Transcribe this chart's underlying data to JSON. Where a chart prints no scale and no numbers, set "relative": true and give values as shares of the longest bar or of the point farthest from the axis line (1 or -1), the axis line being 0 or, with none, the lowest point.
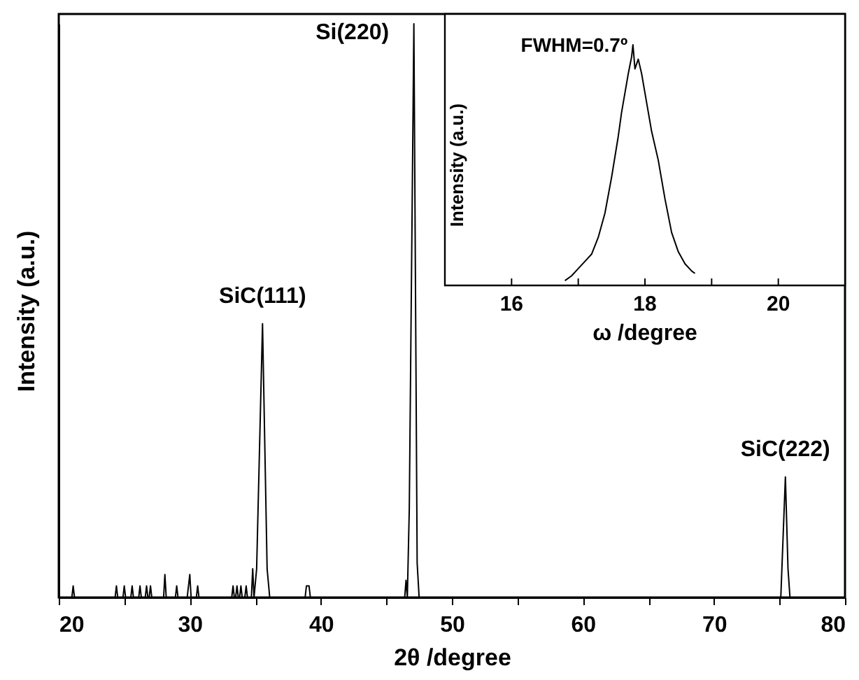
{
  "chart_data": [
    {
      "type": "line",
      "relative": true,
      "xlabel": "2θ /degree",
      "ylabel": "Intensity (a.u.)",
      "xlim": [
        20,
        80
      ],
      "xticks": [
        20,
        {
          "value": 25,
          "label": null
        },
        30,
        {
          "value": 35,
          "label": null
        },
        40,
        {
          "value": 45,
          "label": null
        },
        50,
        {
          "value": 55,
          "label": null
        },
        60,
        {
          "value": 65,
          "label": null
        },
        70,
        {
          "value": 75,
          "label": null
        },
        80
      ],
      "grid": false,
      "tick_labels": "x",
      "annotations": [
        {
          "text": "SiC(111)",
          "x": 35.55,
          "y": 0.477
        },
        {
          "text": "Si(220)",
          "x": 47.1,
          "y": 1
        },
        {
          "text": "SiC(222)",
          "x": 75.45,
          "y": 0.21
        }
      ],
      "series": [
        {
          "color": "#000000",
          "x": [
            20,
            21.0,
            21.1,
            21.2,
            24.3,
            24.4,
            24.5,
            24.9,
            25.0,
            25.1,
            25.5,
            25.6,
            25.7,
            26.1,
            26.2,
            26.3,
            26.6,
            26.7,
            26.8,
            26.9,
            27.0,
            27.1,
            28.0,
            28.1,
            28.2,
            28.9,
            29.0,
            29.1,
            29.8,
            29.9,
            30.0,
            30.1,
            30.2,
            30.5,
            30.6,
            30.7,
            33.2,
            33.3,
            33.4,
            33.5,
            33.6,
            33.7,
            33.8,
            33.9,
            34.0,
            34.2,
            34.3,
            34.4,
            34.7,
            34.8,
            34.9,
            35.1,
            35.55,
            35.9,
            36.1,
            38.8,
            38.9,
            39.0,
            39.1,
            39.2,
            46.4,
            46.5,
            46.6,
            46.75,
            47.1,
            47.35,
            47.5,
            75.1,
            75.45,
            75.65,
            75.8,
            80
          ],
          "values": [
            0,
            0,
            0.02,
            0,
            0,
            0.02,
            0,
            0,
            0.02,
            0,
            0,
            0.02,
            0,
            0,
            0.02,
            0,
            0,
            0.02,
            0,
            0,
            0.02,
            0,
            0,
            0.04,
            0,
            0,
            0.02,
            0,
            0,
            0.02,
            0.04,
            0,
            0,
            0,
            0.02,
            0,
            0,
            0.02,
            0,
            0,
            0.02,
            0,
            0,
            0.02,
            0,
            0,
            0.02,
            0,
            0,
            0.05,
            0,
            0.05,
            0.477,
            0.05,
            0,
            0,
            0.02,
            0.02,
            0.02,
            0,
            0,
            0.03,
            0,
            0.155,
            1,
            0.06,
            0,
            0,
            0.21,
            0.05,
            0,
            0
          ]
        }
      ]
    },
    {
      "type": "line",
      "relative": true,
      "xlabel": "ω /degree",
      "ylabel": "Intensity (a.u.)",
      "xlim": [
        15,
        21
      ],
      "xticks": [
        16,
        {
          "value": 17,
          "label": null
        },
        18,
        {
          "value": 19,
          "label": null
        },
        20
      ],
      "grid": false,
      "tick_labels": "x",
      "annotations": [
        {
          "text": "FWHM=0.7º",
          "x": 17.82,
          "y": 1
        }
      ],
      "series": [
        {
          "color": "#000000",
          "x": [
            16.8,
            16.9,
            17.0,
            17.1,
            17.2,
            17.3,
            17.4,
            17.5,
            17.6,
            17.65,
            17.7,
            17.75,
            17.8,
            17.82,
            17.85,
            17.9,
            17.95,
            18.0,
            18.05,
            18.1,
            18.2,
            18.3,
            18.4,
            18.5,
            18.6,
            18.7,
            18.75
          ],
          "values": [
            0.02,
            0.04,
            0.07,
            0.1,
            0.13,
            0.2,
            0.3,
            0.45,
            0.62,
            0.72,
            0.8,
            0.88,
            0.95,
            1.0,
            0.9,
            0.94,
            0.88,
            0.8,
            0.72,
            0.64,
            0.52,
            0.36,
            0.22,
            0.14,
            0.09,
            0.06,
            0.05
          ]
        }
      ]
    }
  ]
}
